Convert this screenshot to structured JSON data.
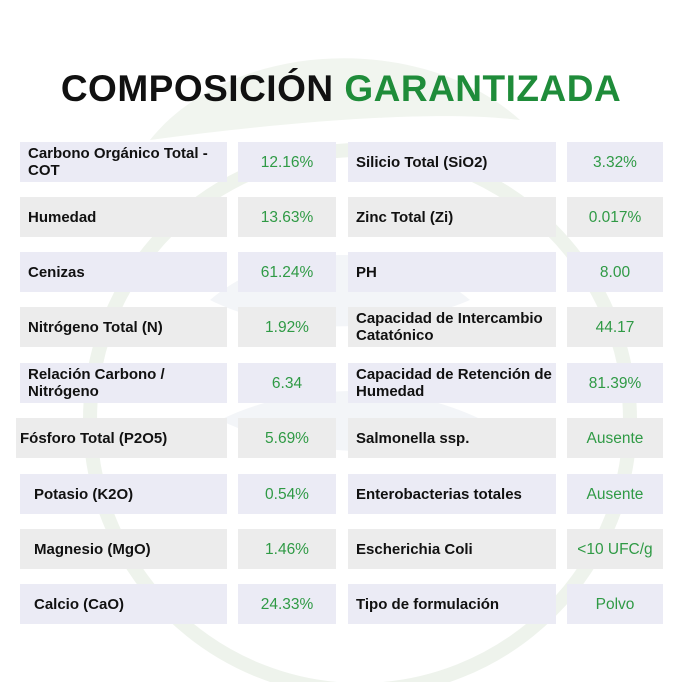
{
  "title": {
    "part1": "COMPOSICIÓN",
    "part2": "GARANTIZADA"
  },
  "colors": {
    "accent_green": "#1f8c3a",
    "value_green": "#2f9a45",
    "row_lavender": "#ebebf5",
    "row_gray": "#ececec"
  },
  "left_table": [
    {
      "label": "Carbono Orgánico Total - COT",
      "value": "12.16%"
    },
    {
      "label": "Humedad",
      "value": "13.63%"
    },
    {
      "label": "Cenizas",
      "value": "61.24%"
    },
    {
      "label": "Nitrógeno Total (N)",
      "value": "1.92%"
    },
    {
      "label": "Relación Carbono / Nitrógeno",
      "value": "6.34"
    },
    {
      "label": "Fósforo Total (P2O5)",
      "value": "5.69%"
    },
    {
      "label": "Potasio (K2O)",
      "value": "0.54%"
    },
    {
      "label": "Magnesio (MgO)",
      "value": "1.46%"
    },
    {
      "label": "Calcio (CaO)",
      "value": "24.33%"
    }
  ],
  "right_table": [
    {
      "label": "Silicio Total (SiO2)",
      "value": "3.32%"
    },
    {
      "label": "Zinc Total (Zi)",
      "value": "0.017%"
    },
    {
      "label": "PH",
      "value": "8.00"
    },
    {
      "label": "Capacidad de Intercambio Catatónico",
      "value": "44.17"
    },
    {
      "label": "Capacidad de Retención de Humedad",
      "value": "81.39%"
    },
    {
      "label": "Salmonella ssp.",
      "value": "Ausente"
    },
    {
      "label": "Enterobacterias totales",
      "value": "Ausente"
    },
    {
      "label": "Escherichia Coli",
      "value": "<10 UFC/g"
    },
    {
      "label": "Tipo de formulación",
      "value": "Polvo"
    }
  ]
}
